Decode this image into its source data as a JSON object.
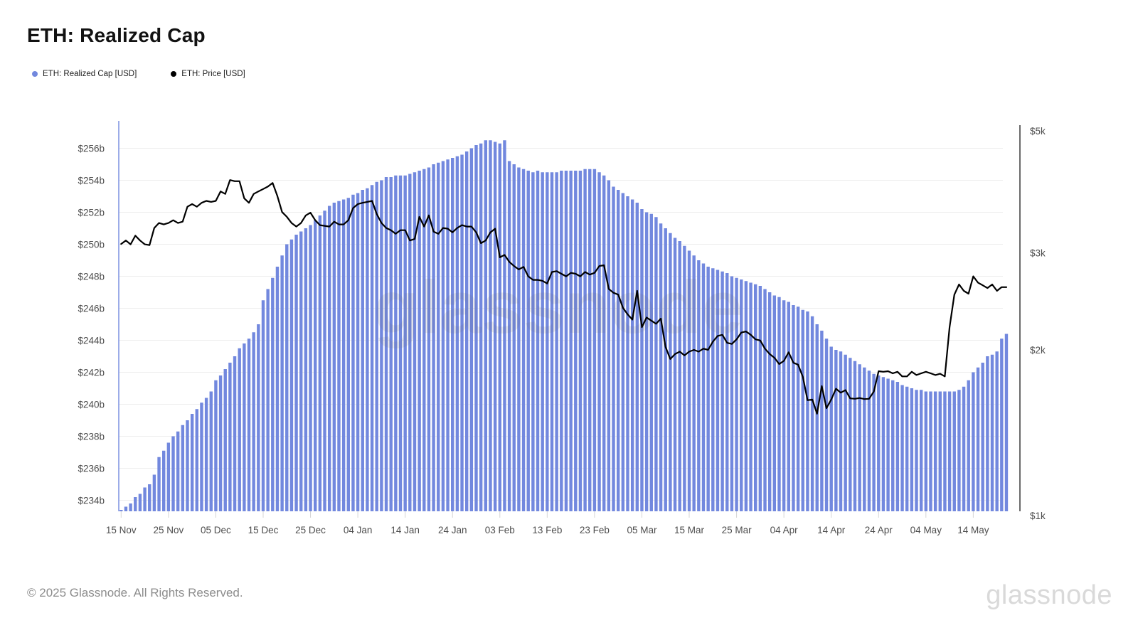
{
  "title": "ETH: Realized Cap",
  "legend": [
    {
      "label": "ETH: Realized Cap [USD]",
      "color": "#7288de"
    },
    {
      "label": "ETH: Price [USD]",
      "color": "#000000"
    }
  ],
  "watermark": "glassnode",
  "footer": {
    "copyright": "© 2025 Glassnode. All Rights Reserved.",
    "brand": "glassnode"
  },
  "chart_data": {
    "type": "bar+line combo, daily",
    "title": "ETH: Realized Cap",
    "start_date": "2024-11-15",
    "end_date": "2025-05-21",
    "frequency": "daily",
    "x_tick_labels": [
      "15 Nov",
      "25 Nov",
      "05 Dec",
      "15 Dec",
      "25 Dec",
      "04 Jan",
      "14 Jan",
      "24 Jan",
      "03 Feb",
      "13 Feb",
      "23 Feb",
      "05 Mar",
      "15 Mar",
      "25 Mar",
      "04 Apr",
      "14 Apr",
      "24 Apr",
      "04 May",
      "14 May"
    ],
    "x_tick_day_index": [
      0,
      10,
      20,
      30,
      40,
      50,
      60,
      70,
      80,
      90,
      100,
      110,
      120,
      130,
      140,
      150,
      160,
      170,
      180
    ],
    "left_axis": {
      "title": "Realized Cap (billions USD)",
      "scale": "linear",
      "ylim": [
        233.3,
        257.7
      ],
      "tick_labels": [
        "$256b",
        "$254b",
        "$252b",
        "$250b",
        "$248b",
        "$246b",
        "$244b",
        "$242b",
        "$240b",
        "$238b",
        "$236b",
        "$234b"
      ],
      "tick_values": [
        256,
        254,
        252,
        250,
        248,
        246,
        244,
        242,
        240,
        238,
        236,
        234
      ],
      "grid": true
    },
    "right_axis": {
      "title": "Price (USD)",
      "scale": "log",
      "ylim": [
        1018,
        5000
      ],
      "tick_labels": [
        "$5k",
        "$3k",
        "$2k",
        "$1k"
      ],
      "tick_values": [
        5000,
        3000,
        2000,
        1000
      ],
      "grid": false
    },
    "series": [
      {
        "name": "ETH: Realized Cap [USD]",
        "type": "bar",
        "axis": "left",
        "unit": "billion USD",
        "color": "#7288de",
        "values": [
          233.4,
          233.6,
          233.8,
          234.2,
          234.4,
          234.8,
          235.0,
          235.6,
          236.7,
          237.1,
          237.6,
          238.0,
          238.3,
          238.7,
          239.0,
          239.4,
          239.7,
          240.1,
          240.4,
          240.8,
          241.5,
          241.8,
          242.2,
          242.6,
          243.0,
          243.5,
          243.8,
          244.1,
          244.5,
          245.0,
          246.5,
          247.2,
          247.9,
          248.6,
          249.3,
          250.0,
          250.3,
          250.6,
          250.8,
          251.0,
          251.2,
          251.5,
          251.8,
          252.1,
          252.4,
          252.6,
          252.7,
          252.8,
          252.9,
          253.1,
          253.2,
          253.4,
          253.5,
          253.7,
          253.9,
          254.0,
          254.2,
          254.2,
          254.3,
          254.3,
          254.3,
          254.4,
          254.5,
          254.6,
          254.7,
          254.8,
          255.0,
          255.1,
          255.2,
          255.3,
          255.4,
          255.5,
          255.6,
          255.8,
          256.0,
          256.2,
          256.3,
          256.5,
          256.5,
          256.4,
          256.3,
          256.5,
          255.2,
          255.0,
          254.8,
          254.7,
          254.6,
          254.5,
          254.6,
          254.5,
          254.5,
          254.5,
          254.5,
          254.6,
          254.6,
          254.6,
          254.6,
          254.6,
          254.7,
          254.7,
          254.7,
          254.5,
          254.3,
          254.0,
          253.6,
          253.4,
          253.2,
          253.0,
          252.8,
          252.6,
          252.2,
          252.0,
          251.9,
          251.7,
          251.3,
          251.0,
          250.7,
          250.4,
          250.2,
          249.9,
          249.6,
          249.3,
          249.0,
          248.8,
          248.6,
          248.5,
          248.4,
          248.3,
          248.2,
          248.0,
          247.9,
          247.8,
          247.7,
          247.6,
          247.5,
          247.4,
          247.2,
          247.0,
          246.8,
          246.7,
          246.5,
          246.4,
          246.2,
          246.1,
          245.9,
          245.8,
          245.5,
          245.0,
          244.6,
          244.1,
          243.6,
          243.4,
          243.3,
          243.1,
          242.9,
          242.7,
          242.5,
          242.3,
          242.1,
          241.9,
          241.8,
          241.7,
          241.6,
          241.5,
          241.4,
          241.2,
          241.1,
          241.0,
          240.9,
          240.9,
          240.8,
          240.8,
          240.8,
          240.8,
          240.8,
          240.8,
          240.8,
          240.9,
          241.1,
          241.5,
          242.0,
          242.3,
          242.6,
          243.0,
          243.1,
          243.3,
          244.1,
          244.4
        ]
      },
      {
        "name": "ETH: Price [USD]",
        "type": "line",
        "axis": "right",
        "unit": "USD",
        "color": "#000000",
        "values": [
          3115,
          3160,
          3110,
          3225,
          3160,
          3110,
          3100,
          3330,
          3400,
          3380,
          3400,
          3440,
          3400,
          3420,
          3640,
          3680,
          3640,
          3700,
          3730,
          3715,
          3730,
          3880,
          3840,
          4070,
          4050,
          4050,
          3770,
          3700,
          3840,
          3880,
          3920,
          3960,
          4020,
          3810,
          3560,
          3490,
          3400,
          3350,
          3400,
          3510,
          3550,
          3440,
          3370,
          3360,
          3350,
          3420,
          3380,
          3380,
          3440,
          3620,
          3680,
          3700,
          3715,
          3730,
          3530,
          3400,
          3330,
          3300,
          3250,
          3300,
          3300,
          3160,
          3180,
          3490,
          3350,
          3510,
          3280,
          3250,
          3330,
          3320,
          3270,
          3330,
          3370,
          3350,
          3350,
          3270,
          3125,
          3160,
          3270,
          3320,
          2945,
          2975,
          2890,
          2840,
          2800,
          2830,
          2720,
          2680,
          2680,
          2670,
          2640,
          2770,
          2780,
          2750,
          2720,
          2760,
          2750,
          2720,
          2770,
          2740,
          2760,
          2840,
          2850,
          2580,
          2540,
          2520,
          2385,
          2320,
          2270,
          2560,
          2200,
          2290,
          2260,
          2230,
          2280,
          2025,
          1925,
          1965,
          1985,
          1955,
          1985,
          2000,
          1985,
          2010,
          2000,
          2070,
          2120,
          2130,
          2060,
          2050,
          2090,
          2150,
          2160,
          2130,
          2090,
          2080,
          2010,
          1965,
          1935,
          1885,
          1910,
          1980,
          1895,
          1880,
          1786,
          1620,
          1625,
          1531,
          1719,
          1567,
          1625,
          1700,
          1672,
          1690,
          1633,
          1630,
          1635,
          1628,
          1630,
          1680,
          1829,
          1825,
          1829,
          1813,
          1825,
          1790,
          1790,
          1825,
          1800,
          1813,
          1825,
          1813,
          1800,
          1810,
          1790,
          2200,
          2520,
          2630,
          2560,
          2530,
          2720,
          2650,
          2620,
          2590,
          2630,
          2560,
          2600,
          2600
        ]
      }
    ]
  }
}
